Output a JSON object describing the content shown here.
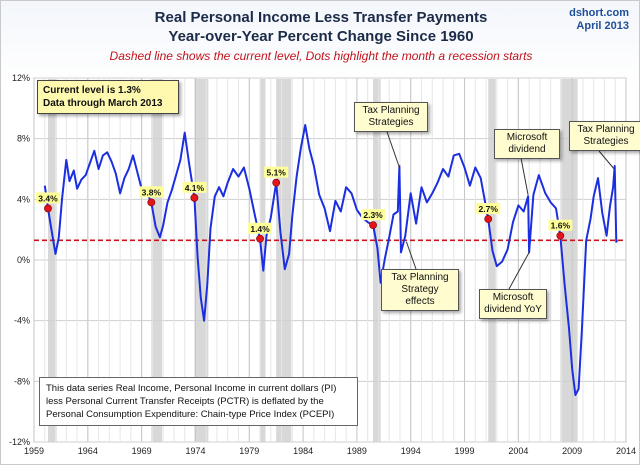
{
  "header": {
    "title_line1": "Real Personal Income Less Transfer Payments",
    "title_line2": "Year-over-Year Percent Change Since 1960",
    "subtitle": "Dashed line shows the current level, Dots highlight the month a recession starts",
    "source_line1": "dshort.com",
    "source_line2": "April 2013"
  },
  "current_box": {
    "line1": "Current level is 1.3%",
    "line2": "Data through March 2013"
  },
  "note": "This data series  Real Income, Personal Income in current dollars  (PI) less Personal Current Transfer Receipts (PCTR) is deflated by the Personal Consumption Expenditure: Chain-type Price Index (PCEPI)",
  "annotations": {
    "tax1": "Tax Planning Strategies",
    "tax_effects": "Tax Planning Strategy effects",
    "microsoft": "Microsoft dividend",
    "microsoft_yoy": "Microsoft dividend YoY",
    "tax2": "Tax Planning Strategies"
  },
  "colors": {
    "line": "#1c2fe0",
    "dashed": "#c8141c",
    "dot": "#e3141c",
    "recession": "#d8d8d8",
    "label_bg": "#ffff99"
  },
  "chart_data": {
    "type": "line",
    "x_ticks": [
      1959,
      1964,
      1969,
      1974,
      1979,
      1984,
      1989,
      1994,
      1999,
      2004,
      2009,
      2014
    ],
    "y_ticks": [
      -12,
      -8,
      -4,
      0,
      4,
      8,
      12
    ],
    "y_tick_labels": [
      "-12%",
      "-8%",
      "-4%",
      "0%",
      "4%",
      "8%",
      "12%"
    ],
    "xlim": [
      1959,
      2014
    ],
    "ylim": [
      -12,
      12
    ],
    "grid": true,
    "current_level": 1.3,
    "recessions": [
      [
        1960.3,
        1961.1
      ],
      [
        1969.9,
        1970.9
      ],
      [
        1973.9,
        1975.2
      ],
      [
        1980.0,
        1980.5
      ],
      [
        1981.5,
        1982.9
      ],
      [
        1990.5,
        1991.2
      ],
      [
        2001.2,
        2001.9
      ],
      [
        2007.9,
        2009.5
      ]
    ],
    "recession_starts": [
      {
        "x": 1960.3,
        "y": 3.4,
        "label": "3.4%"
      },
      {
        "x": 1969.9,
        "y": 3.8,
        "label": "3.8%"
      },
      {
        "x": 1973.9,
        "y": 4.1,
        "label": "4.1%"
      },
      {
        "x": 1980.0,
        "y": 1.4,
        "label": "1.4%"
      },
      {
        "x": 1981.5,
        "y": 5.1,
        "label": "5.1%"
      },
      {
        "x": 1990.5,
        "y": 2.3,
        "label": "2.3%"
      },
      {
        "x": 2001.2,
        "y": 2.7,
        "label": "2.7%"
      },
      {
        "x": 2007.9,
        "y": 1.6,
        "label": "1.6%"
      }
    ],
    "series": [
      {
        "x": [
          1960.0,
          1960.3,
          1960.6,
          1961.0,
          1961.3,
          1961.6,
          1962.0,
          1962.3,
          1962.7,
          1963.0,
          1963.4,
          1963.8,
          1964.2,
          1964.6,
          1965.0,
          1965.4,
          1965.8,
          1966.2,
          1966.6,
          1967.0,
          1967.4,
          1967.8,
          1968.2,
          1968.6,
          1969.0,
          1969.4,
          1969.9,
          1970.3,
          1970.7,
          1971.0,
          1971.4,
          1971.8,
          1972.2,
          1972.6,
          1973.0,
          1973.4,
          1973.9,
          1974.2,
          1974.5,
          1974.8,
          1975.1,
          1975.4,
          1975.8,
          1976.2,
          1976.6,
          1977.0,
          1977.5,
          1978.0,
          1978.5,
          1979.0,
          1979.5,
          1980.0,
          1980.3,
          1980.6,
          1981.0,
          1981.5,
          1981.9,
          1982.3,
          1982.7,
          1983.0,
          1983.4,
          1983.8,
          1984.2,
          1984.6,
          1985.0,
          1985.5,
          1986.0,
          1986.5,
          1987.0,
          1987.5,
          1988.0,
          1988.5,
          1989.0,
          1989.5,
          1990.0,
          1990.5,
          1990.9,
          1991.2,
          1991.6,
          1992.0,
          1992.4,
          1992.8,
          1992.95,
          1993.1,
          1993.5,
          1994.0,
          1994.5,
          1995.0,
          1995.5,
          1996.0,
          1996.5,
          1997.0,
          1997.5,
          1998.0,
          1998.5,
          1999.0,
          1999.5,
          2000.0,
          2000.5,
          2001.2,
          2001.6,
          2002.0,
          2002.5,
          2003.0,
          2003.5,
          2004.0,
          2004.5,
          2004.9,
          2005.0,
          2005.4,
          2005.9,
          2006.5,
          2007.0,
          2007.5,
          2007.9,
          2008.3,
          2008.7,
          2009.0,
          2009.3,
          2009.6,
          2009.9,
          2010.3,
          2010.7,
          2011.0,
          2011.4,
          2011.8,
          2012.2,
          2012.5,
          2012.8,
          2012.95,
          2013.1,
          2013.2
        ],
        "y": [
          4.9,
          3.4,
          2.1,
          0.4,
          1.5,
          4.0,
          6.6,
          5.2,
          5.9,
          4.7,
          5.3,
          5.6,
          6.4,
          7.2,
          6.0,
          6.9,
          7.1,
          6.5,
          5.7,
          4.4,
          5.4,
          6.0,
          6.9,
          5.8,
          4.7,
          4.6,
          3.8,
          2.2,
          1.5,
          2.3,
          3.8,
          4.6,
          5.6,
          6.6,
          8.4,
          6.4,
          4.1,
          0.2,
          -2.5,
          -4.0,
          -1.6,
          2.1,
          4.2,
          4.8,
          4.2,
          5.1,
          6.0,
          5.5,
          6.1,
          4.7,
          3.0,
          1.4,
          -0.7,
          1.6,
          2.8,
          5.1,
          1.8,
          -0.6,
          0.4,
          2.9,
          5.5,
          7.4,
          8.9,
          7.3,
          6.2,
          4.3,
          3.4,
          1.9,
          3.9,
          3.2,
          4.8,
          4.4,
          3.3,
          2.8,
          2.5,
          2.3,
          0.8,
          -1.5,
          0.1,
          1.5,
          3.0,
          3.2,
          6.2,
          0.5,
          1.6,
          4.4,
          2.4,
          4.8,
          3.8,
          4.4,
          5.1,
          6.0,
          5.5,
          6.9,
          7.0,
          6.1,
          4.9,
          6.1,
          5.4,
          2.7,
          0.6,
          -0.4,
          -0.1,
          0.7,
          2.5,
          3.6,
          3.2,
          4.2,
          0.5,
          4.3,
          5.6,
          4.4,
          3.8,
          3.4,
          1.6,
          -1.6,
          -4.5,
          -7.2,
          -8.9,
          -8.5,
          -4.6,
          1.3,
          2.7,
          4.2,
          5.4,
          3.1,
          1.6,
          3.5,
          4.8,
          6.2,
          1.2,
          1.3
        ]
      }
    ]
  }
}
